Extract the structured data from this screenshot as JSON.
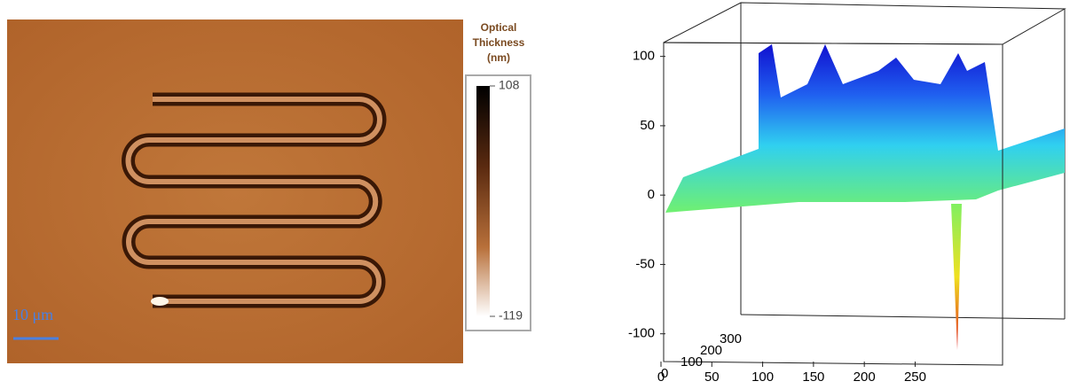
{
  "chart_data": [
    {
      "type": "image",
      "scale_bar": "10 μm",
      "colorbar_title": [
        "Optical",
        "Thickness",
        "(nm)"
      ],
      "colorbar_lim": [
        -119,
        108
      ],
      "colorbar_ticks": [
        108,
        -119
      ]
    },
    {
      "type": "surface3d",
      "xlim": [
        0,
        336
      ],
      "xticks": [
        0,
        50,
        100,
        150,
        200,
        250
      ],
      "ylim": [
        0,
        400
      ],
      "yticks": [
        0,
        100,
        200,
        300
      ],
      "zlim": [
        -120,
        110
      ],
      "zticks": [
        100,
        50,
        0,
        -50,
        -100
      ]
    }
  ]
}
